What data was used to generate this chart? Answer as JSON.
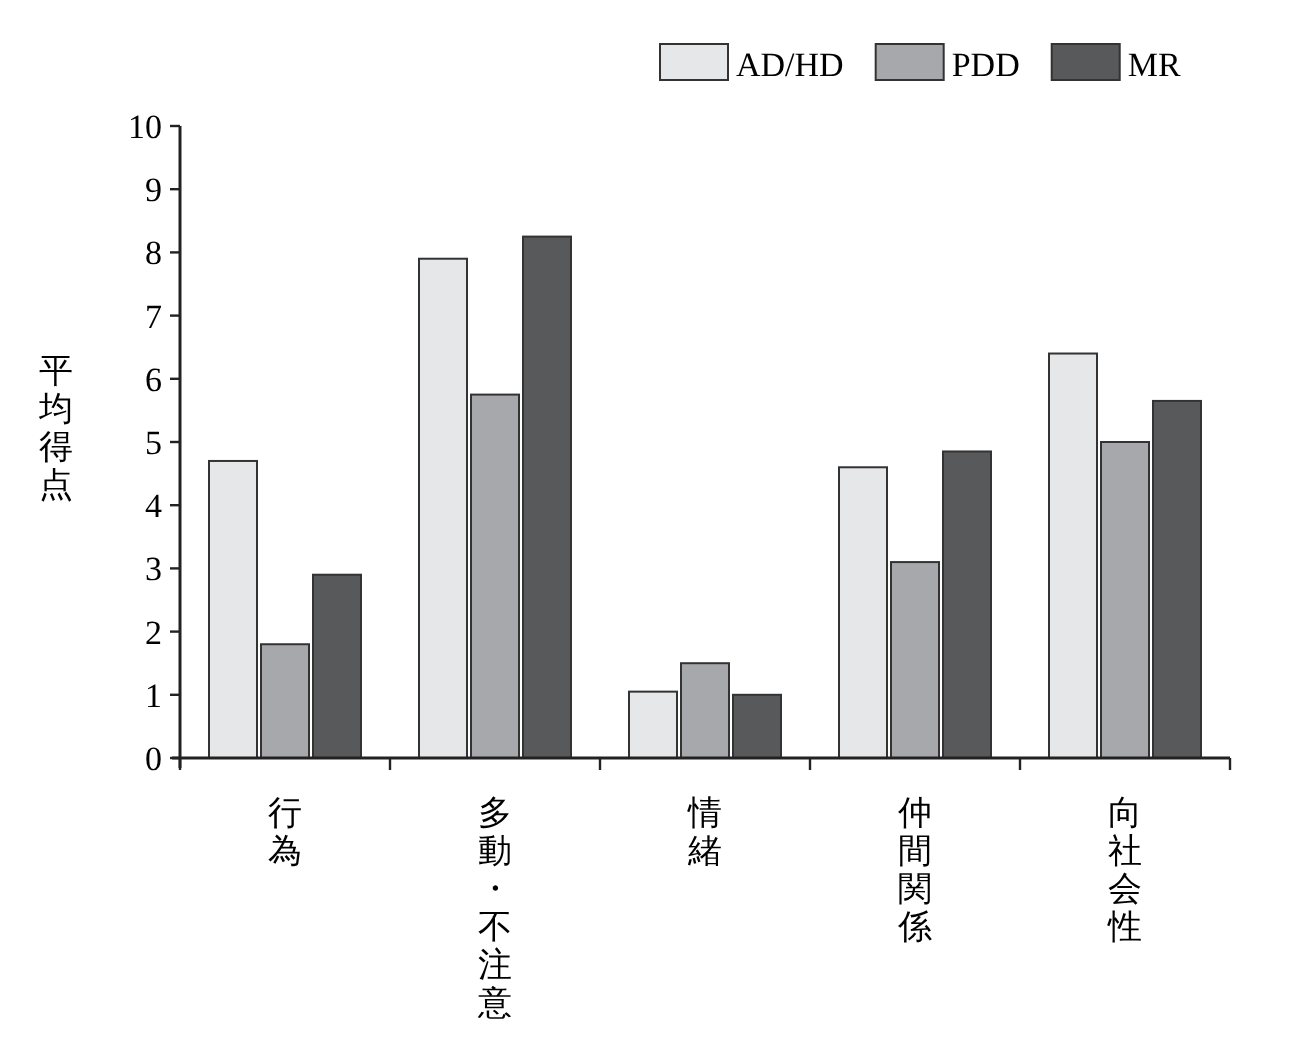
{
  "chart_data": {
    "type": "bar",
    "ylabel": "平均得点",
    "categories": [
      "行為",
      "多動・不注意",
      "情緒",
      "仲間関係",
      "向社会性"
    ],
    "series": [
      {
        "name": "AD/HD",
        "color": "#e6e7e9",
        "values": [
          4.7,
          7.9,
          1.05,
          4.6,
          6.4
        ]
      },
      {
        "name": "PDD",
        "color": "#a7a8ab",
        "values": [
          1.8,
          5.75,
          1.5,
          3.1,
          5.0
        ]
      },
      {
        "name": "MR",
        "color": "#58595b",
        "values": [
          2.9,
          8.25,
          1.0,
          4.85,
          5.65
        ]
      }
    ],
    "ylim": [
      0,
      10
    ],
    "yticks": [
      0,
      1,
      2,
      3,
      4,
      5,
      6,
      7,
      8,
      9,
      10
    ],
    "grid": false,
    "legend": "top right"
  }
}
